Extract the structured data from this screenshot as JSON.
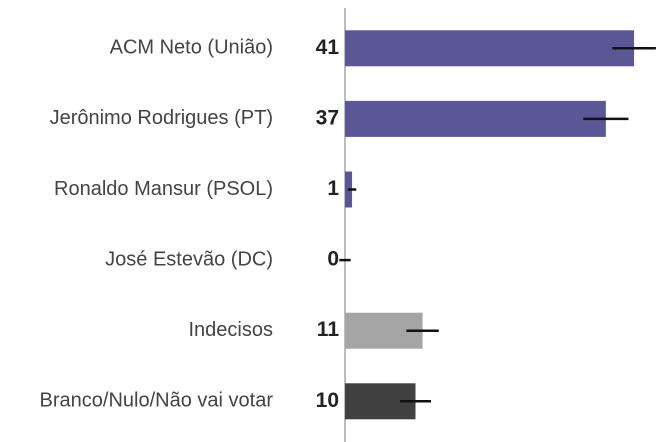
{
  "chart_data": {
    "type": "bar",
    "orientation": "horizontal",
    "categories": [
      "ACM Neto (União)",
      "Jerônimo Rodrigues (PT)",
      "Ronaldo Mansur (PSOL)",
      "José Estevão (DC)",
      "Indecisos",
      "Branco/Nulo/Não vai votar"
    ],
    "values": [
      41,
      37,
      1,
      0,
      11,
      10
    ],
    "errors": [
      3.1,
      3.2,
      0.6,
      0.8,
      2.3,
      2.2
    ],
    "colors": [
      "#5b5796",
      "#5b5796",
      "#5b5796",
      "#5b5796",
      "#a5a5a5",
      "#404040"
    ]
  }
}
